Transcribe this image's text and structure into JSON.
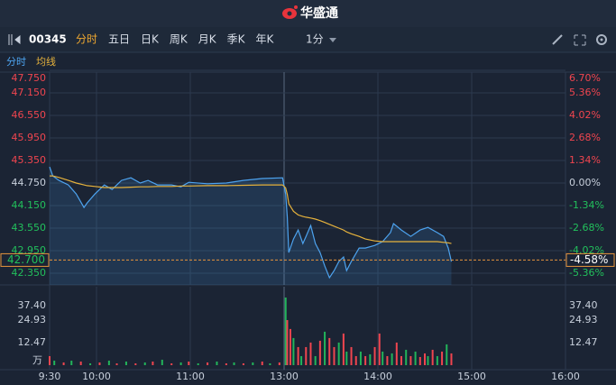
{
  "header": {
    "title": "华盛通"
  },
  "toolbar": {
    "code": "00345",
    "tabs": [
      "分时",
      "五日",
      "日K",
      "周K",
      "月K",
      "季K",
      "年K"
    ],
    "interval": "1分"
  },
  "chart_data": [
    {
      "type": "line",
      "x": [
        0,
        2,
        6,
        12,
        17,
        22,
        24,
        29,
        35,
        40,
        46,
        52,
        58,
        63,
        69,
        78,
        84,
        89,
        101,
        113,
        124,
        136,
        149,
        151,
        152,
        153,
        156,
        159,
        162,
        164,
        167,
        170,
        173,
        176,
        179,
        182,
        185,
        188,
        190,
        193,
        198,
        202,
        208,
        213,
        218,
        220,
        225,
        231,
        237,
        242,
        248,
        252,
        255,
        257
      ],
      "series": [
        {
          "name": "分时",
          "color": "#4da3ef",
          "values": [
            45.18,
            44.94,
            44.82,
            44.7,
            44.46,
            44.1,
            44.22,
            44.46,
            44.7,
            44.58,
            44.82,
            44.89,
            44.75,
            44.82,
            44.7,
            44.7,
            44.65,
            44.77,
            44.73,
            44.75,
            44.82,
            44.87,
            44.89,
            44.46,
            43.86,
            42.9,
            43.26,
            43.5,
            43.14,
            43.33,
            43.62,
            43.14,
            42.9,
            42.54,
            42.23,
            42.42,
            42.66,
            42.78,
            42.42,
            42.66,
            43.02,
            43.02,
            43.09,
            43.19,
            43.43,
            43.67,
            43.5,
            43.33,
            43.5,
            43.57,
            43.43,
            43.33,
            43.02,
            42.66
          ]
        },
        {
          "name": "均线",
          "color": "#e6b23c",
          "values": [
            44.94,
            44.94,
            44.9,
            44.82,
            44.75,
            44.7,
            44.68,
            44.66,
            44.63,
            44.63,
            44.63,
            44.64,
            44.65,
            44.65,
            44.66,
            44.66,
            44.67,
            44.67,
            44.68,
            44.68,
            44.69,
            44.7,
            44.7,
            44.62,
            44.45,
            44.2,
            44.0,
            43.9,
            43.86,
            43.84,
            43.82,
            43.79,
            43.75,
            43.7,
            43.65,
            43.6,
            43.55,
            43.5,
            43.45,
            43.4,
            43.33,
            43.26,
            43.21,
            43.19,
            43.19,
            43.19,
            43.19,
            43.19,
            43.19,
            43.19,
            43.19,
            43.17,
            43.16,
            43.14
          ]
        }
      ],
      "xlim": [
        0,
        330
      ],
      "xticks": [
        {
          "value": 0,
          "label": "9:30"
        },
        {
          "value": 30,
          "label": "10:00"
        },
        {
          "value": 90,
          "label": "11:00"
        },
        {
          "value": 150,
          "label": "13:00"
        },
        {
          "value": 210,
          "label": "14:00"
        },
        {
          "value": 270,
          "label": "15:00"
        },
        {
          "value": 330,
          "label": "16:00"
        }
      ],
      "ylim": [
        42.35,
        47.75
      ],
      "yticks": [
        {
          "value": 47.75,
          "label": "47.750"
        },
        {
          "value": 47.15,
          "label": "47.150"
        },
        {
          "value": 46.55,
          "label": "46.550"
        },
        {
          "value": 45.95,
          "label": "45.950"
        },
        {
          "value": 45.35,
          "label": "45.350"
        },
        {
          "value": 44.75,
          "label": "44.750"
        },
        {
          "value": 44.15,
          "label": "44.150"
        },
        {
          "value": 43.55,
          "label": "43.550"
        },
        {
          "value": 42.95,
          "label": "42.950"
        },
        {
          "value": 42.35,
          "label": "42.350"
        }
      ],
      "y2lim": [
        -5.36,
        6.7
      ],
      "y2ticks": [
        {
          "value": 6.7,
          "label": "6.70%"
        },
        {
          "value": 5.36,
          "label": "5.36%"
        },
        {
          "value": 4.02,
          "label": "4.02%"
        },
        {
          "value": 2.68,
          "label": "2.68%"
        },
        {
          "value": 1.34,
          "label": "1.34%"
        },
        {
          "value": 0,
          "label": "0.00%"
        },
        {
          "value": -1.34,
          "label": "-1.34%"
        },
        {
          "value": -2.68,
          "label": "-2.68%"
        },
        {
          "value": -4.02,
          "label": "-4.02%"
        },
        {
          "value": -5.36,
          "label": "-5.36%"
        }
      ],
      "last_price": {
        "value": 42.7,
        "label": "42.700"
      },
      "last_change": "-4.58%",
      "grid": true
    },
    {
      "type": "bar",
      "unit": "万",
      "x": [
        0,
        3,
        9,
        14,
        20,
        26,
        32,
        38,
        43,
        49,
        55,
        61,
        66,
        72,
        78,
        84,
        89,
        95,
        101,
        107,
        113,
        118,
        124,
        130,
        136,
        141,
        147,
        151,
        152,
        154,
        156,
        159,
        161,
        164,
        167,
        170,
        173,
        176,
        179,
        182,
        185,
        188,
        190,
        193,
        196,
        199,
        202,
        205,
        208,
        211,
        213,
        216,
        219,
        222,
        225,
        228,
        231,
        234,
        237,
        240,
        242,
        245,
        248,
        251,
        254,
        257
      ],
      "values": [
        5,
        2.5,
        1.5,
        2.5,
        2,
        1,
        1.5,
        2.5,
        1,
        2,
        1,
        1.5,
        2,
        3,
        1,
        1.5,
        2,
        1,
        1.5,
        2,
        1,
        1.5,
        1,
        1.5,
        2,
        1,
        1.5,
        37.4,
        24.93,
        20,
        15,
        10,
        5,
        10,
        12.5,
        5,
        13.5,
        18.5,
        15,
        10,
        12.5,
        17.5,
        7.5,
        10,
        5,
        7.5,
        5,
        6,
        10,
        17.5,
        7.5,
        5,
        6.5,
        12.5,
        5,
        8.5,
        5,
        7.5,
        4.5,
        6.5,
        5,
        8.5,
        5,
        7.5,
        11.5,
        6.5
      ],
      "colors": [
        "#f0454f",
        "#22b45a",
        "#f0454f",
        "#22b45a",
        "#f0454f",
        "#22b45a",
        "#f0454f",
        "#22b45a",
        "#f0454f",
        "#22b45a",
        "#f0454f",
        "#22b45a",
        "#f0454f",
        "#22b45a",
        "#f0454f",
        "#22b45a",
        "#f0454f",
        "#22b45a",
        "#f0454f",
        "#22b45a",
        "#f0454f",
        "#22b45a",
        "#f0454f",
        "#22b45a",
        "#f0454f",
        "#22b45a",
        "#f0454f",
        "#22b45a",
        "#f0454f",
        "#f0454f",
        "#22b45a",
        "#f0454f",
        "#22b45a",
        "#f0454f",
        "#f0454f",
        "#22b45a",
        "#f0454f",
        "#22b45a",
        "#f0454f",
        "#f0454f",
        "#22b45a",
        "#f0454f",
        "#22b45a",
        "#f0454f",
        "#f0454f",
        "#22b45a",
        "#f0454f",
        "#22b45a",
        "#f0454f",
        "#f0454f",
        "#22b45a",
        "#f0454f",
        "#22b45a",
        "#f0454f",
        "#f0454f",
        "#22b45a",
        "#f0454f",
        "#22b45a",
        "#f0454f",
        "#f0454f",
        "#22b45a",
        "#f0454f",
        "#22b45a",
        "#f0454f",
        "#22b45a",
        "#f0454f"
      ],
      "xlim": [
        0,
        330
      ],
      "ylim": [
        0,
        37.4
      ],
      "yticks": [
        {
          "value": 37.4,
          "label": "37.40"
        },
        24.93,
        12.47
      ]
    }
  ]
}
